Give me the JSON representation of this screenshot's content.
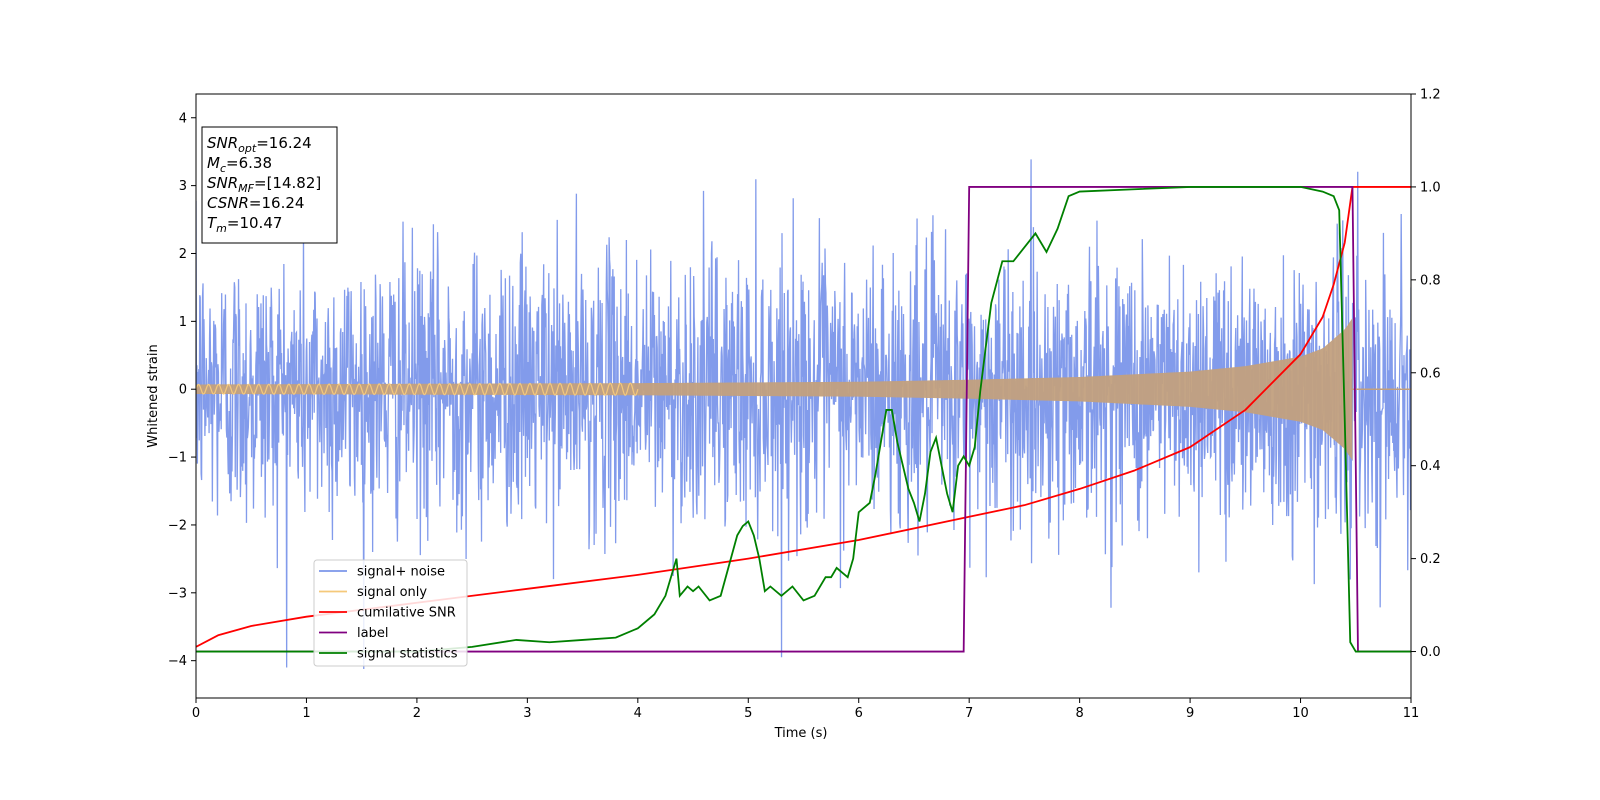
{
  "chart_data": {
    "type": "line",
    "xlabel": "Time (s)",
    "ylabel": "Whitened strain",
    "xlim": [
      0,
      11
    ],
    "ylim_left": [
      -4.55,
      4.35
    ],
    "ylim_right": [
      -0.1,
      1.2
    ],
    "x_ticks": [
      0,
      1,
      2,
      3,
      4,
      5,
      6,
      7,
      8,
      9,
      10,
      11
    ],
    "y_ticks_left": [
      -4,
      -3,
      -2,
      -1,
      0,
      1,
      2,
      3,
      4
    ],
    "y_ticks_right": [
      0.0,
      0.2,
      0.4,
      0.6,
      0.8,
      1.0,
      1.2
    ],
    "y_tick_labels_right": [
      "0.0",
      "0.2",
      "0.4",
      "0.6",
      "0.8",
      "1.0",
      "1.2"
    ],
    "grid": false,
    "legend_position": "lower-left",
    "info_box": {
      "lines": [
        {
          "main": "SNR",
          "sub": "opt",
          "rest": "=16.24"
        },
        {
          "main": "M",
          "sub": "c",
          "rest": "=6.38"
        },
        {
          "main": "SNR",
          "sub": "MF",
          "rest": "=[14.82]"
        },
        {
          "main": "CSNR",
          "sub": "",
          "rest": "=16.24"
        },
        {
          "main": "T",
          "sub": "m",
          "rest": "=10.47"
        }
      ]
    },
    "series": [
      {
        "name": "signal+ noise",
        "color": "#7b96ea",
        "axis": "left",
        "description_values": {
          "noise_sigma": 1.0,
          "t_start": 0,
          "t_end": 11
        }
      },
      {
        "name": "signal only",
        "color": "#f5c97a",
        "axis": "left",
        "envelope": {
          "x": [
            0,
            2,
            4,
            6,
            7,
            8,
            9,
            9.5,
            10,
            10.2,
            10.4,
            10.47
          ],
          "amplitude": [
            0.07,
            0.08,
            0.09,
            0.11,
            0.14,
            0.18,
            0.26,
            0.34,
            0.48,
            0.6,
            0.88,
            1.05
          ]
        }
      },
      {
        "name": "cumilative SNR",
        "color": "#ff0000",
        "axis": "right",
        "x": [
          0,
          0.2,
          0.5,
          1,
          1.5,
          2,
          3,
          4,
          5,
          6,
          7,
          7.5,
          8,
          8.5,
          9,
          9.5,
          10,
          10.2,
          10.3,
          10.4,
          10.47,
          10.5,
          11
        ],
        "y": [
          0.01,
          0.035,
          0.055,
          0.075,
          0.09,
          0.105,
          0.135,
          0.165,
          0.2,
          0.24,
          0.29,
          0.315,
          0.35,
          0.39,
          0.44,
          0.52,
          0.64,
          0.72,
          0.79,
          0.88,
          1.0,
          1.0,
          1.0
        ]
      },
      {
        "name": "label",
        "color": "#800080",
        "axis": "right",
        "x": [
          0,
          6.95,
          7.0,
          10.47,
          10.52,
          11
        ],
        "y": [
          0,
          0,
          1,
          1,
          0,
          0
        ]
      },
      {
        "name": "signal statistics",
        "color": "#008000",
        "axis": "right",
        "x": [
          0,
          2.0,
          2.5,
          2.9,
          3.2,
          3.5,
          3.8,
          4.0,
          4.15,
          4.25,
          4.35,
          4.38,
          4.45,
          4.5,
          4.55,
          4.65,
          4.75,
          4.9,
          4.95,
          5.0,
          5.05,
          5.1,
          5.15,
          5.2,
          5.3,
          5.4,
          5.5,
          5.6,
          5.7,
          5.75,
          5.8,
          5.85,
          5.9,
          5.95,
          6.0,
          6.1,
          6.15,
          6.2,
          6.25,
          6.3,
          6.35,
          6.4,
          6.45,
          6.5,
          6.55,
          6.6,
          6.65,
          6.7,
          6.75,
          6.8,
          6.85,
          6.9,
          6.95,
          7.0,
          7.05,
          7.1,
          7.2,
          7.3,
          7.4,
          7.5,
          7.6,
          7.7,
          7.8,
          7.9,
          8.0,
          8.5,
          9.0,
          9.5,
          10.0,
          10.2,
          10.3,
          10.35,
          10.4,
          10.45,
          10.5,
          10.55,
          11
        ],
        "y": [
          0,
          0,
          0.01,
          0.025,
          0.02,
          0.025,
          0.03,
          0.05,
          0.08,
          0.12,
          0.2,
          0.12,
          0.14,
          0.13,
          0.14,
          0.11,
          0.12,
          0.25,
          0.27,
          0.28,
          0.25,
          0.2,
          0.13,
          0.14,
          0.12,
          0.14,
          0.11,
          0.12,
          0.16,
          0.16,
          0.18,
          0.17,
          0.16,
          0.2,
          0.3,
          0.32,
          0.38,
          0.45,
          0.52,
          0.52,
          0.45,
          0.4,
          0.35,
          0.32,
          0.28,
          0.34,
          0.43,
          0.46,
          0.4,
          0.34,
          0.3,
          0.4,
          0.42,
          0.4,
          0.44,
          0.56,
          0.75,
          0.84,
          0.84,
          0.87,
          0.9,
          0.86,
          0.91,
          0.98,
          0.99,
          0.995,
          1.0,
          1.0,
          1.0,
          0.99,
          0.98,
          0.95,
          0.5,
          0.02,
          0.0,
          0.0,
          0.0
        ]
      }
    ]
  }
}
